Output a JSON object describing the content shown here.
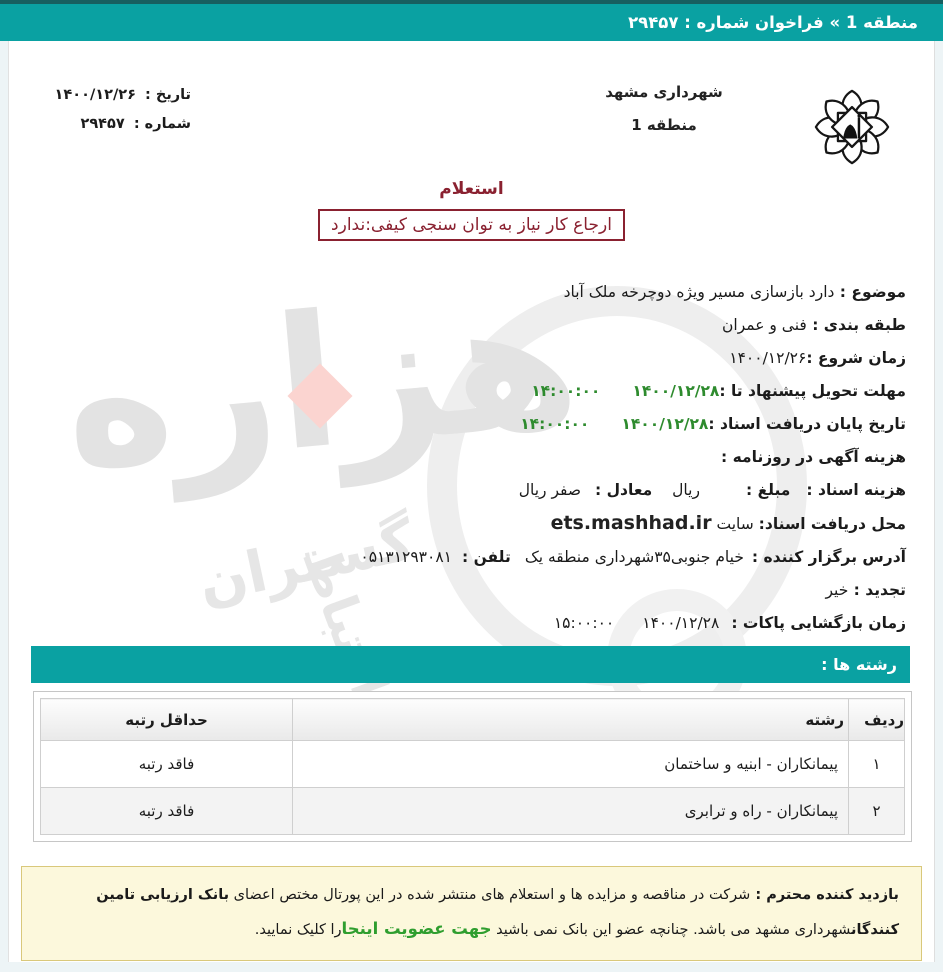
{
  "header": {
    "title": "منطقه 1 » فراخوان شماره : ۲۹۴۵۷"
  },
  "letterhead": {
    "org_line1": "شهرداری مشهد",
    "org_line2": "منطقه 1",
    "date_label": "تاریخ :",
    "date_value": "۱۴۰۰/۱۲/۲۶",
    "no_label": "شماره :",
    "no_value": "۲۹۴۵۷",
    "logo_name": "mashhad-municipality-logo"
  },
  "inquiry": {
    "type_title": "استعلام",
    "qualification_box": "ارجاع کار نیاز به توان سنجی کیفی:ندارد"
  },
  "fields": [
    {
      "name": "subject",
      "segments": [
        {
          "t": "موضوع : ",
          "s": "label"
        },
        {
          "t": "دارد بازسازی مسیر ویژه دوچرخه ملک آباد",
          "s": "value"
        }
      ]
    },
    {
      "name": "category",
      "segments": [
        {
          "t": "طبقه بندی : ",
          "s": "label"
        },
        {
          "t": "فنی و عمران",
          "s": "value"
        }
      ]
    },
    {
      "name": "start-date",
      "segments": [
        {
          "t": "زمان شروع :",
          "s": "label"
        },
        {
          "t": "۱۴۰۰/۱۲/۲۶",
          "s": "value"
        }
      ]
    },
    {
      "name": "proposal-deadline",
      "segments": [
        {
          "t": "مهلت تحویل پیشنهاد تا :",
          "s": "label"
        },
        {
          "t": "۱۴۰۰/۱۲/۲۸",
          "s": "green"
        },
        {
          "s": "gap",
          "w": 32
        },
        {
          "t": "۱۴:۰۰:۰۰",
          "s": "green"
        }
      ]
    },
    {
      "name": "document-receive-end",
      "segments": [
        {
          "t": "تاریخ پایان دریافت اسناد :",
          "s": "label"
        },
        {
          "t": "۱۴۰۰/۱۲/۲۸",
          "s": "green"
        },
        {
          "s": "gap",
          "w": 32
        },
        {
          "t": "۱۴:۰۰:۰۰",
          "s": "green"
        }
      ]
    },
    {
      "name": "newspaper-ad-cost",
      "segments": [
        {
          "t": "هزینه آگهی در روزنامه :",
          "s": "label"
        }
      ]
    },
    {
      "name": "document-cost",
      "segments": [
        {
          "t": "هزینه اسناد :",
          "s": "label"
        },
        {
          "s": "gap",
          "w": 16
        },
        {
          "t": "مبلغ :",
          "s": "label"
        },
        {
          "s": "gap",
          "w": 46
        },
        {
          "t": "ریال",
          "s": "value"
        },
        {
          "s": "gap",
          "w": 20
        },
        {
          "t": "معادل :",
          "s": "label"
        },
        {
          "s": "gap",
          "w": 14
        },
        {
          "t": "صفر ریال",
          "s": "value"
        }
      ]
    },
    {
      "name": "document-location",
      "segments": [
        {
          "t": "محل دریافت اسناد:",
          "s": "label"
        },
        {
          "t": " سایت ",
          "s": "value"
        },
        {
          "t": "ets.mashhad.ir",
          "s": "latin"
        }
      ]
    },
    {
      "name": "organizer-address",
      "segments": [
        {
          "t": "آدرس برگزار کننده :",
          "s": "label"
        },
        {
          "s": "gap",
          "w": 8
        },
        {
          "t": "خیام جنوبی۳۵شهرداری منطقه یک",
          "s": "value"
        },
        {
          "s": "gap",
          "w": 14
        },
        {
          "t": "تلفن :",
          "s": "label"
        },
        {
          "s": "gap",
          "w": 10
        },
        {
          "t": "۰۵۱۳۱۲۹۳۰۸۱",
          "s": "value"
        }
      ]
    },
    {
      "name": "renewal",
      "segments": [
        {
          "t": "تجدید : ",
          "s": "label"
        },
        {
          "t": "خیر",
          "s": "value"
        }
      ]
    },
    {
      "name": "envelope-opening",
      "segments": [
        {
          "t": "زمان بازگشایی پاکات :",
          "s": "label"
        },
        {
          "s": "gap",
          "w": 12
        },
        {
          "t": "۱۴۰۰/۱۲/۲۸",
          "s": "value"
        },
        {
          "s": "gap",
          "w": 28
        },
        {
          "t": "۱۵:۰۰:۰۰",
          "s": "value"
        }
      ]
    }
  ],
  "disciplines": {
    "section_title": "رشته ها :",
    "table": {
      "headers": [
        "ردیف",
        "رشته",
        "حداقل رتبه"
      ],
      "rows": [
        [
          "۱",
          "پیمانکاران - ابنیه و ساختمان",
          "فاقد رتبه"
        ],
        [
          "۲",
          "پیمانکاران - راه و ترابری",
          "فاقد رتبه"
        ]
      ]
    }
  },
  "footer_notice": {
    "segments": [
      {
        "t": "بازدید کننده محترم : ",
        "s": "bold"
      },
      {
        "t": "شرکت در مناقصه و مزایده ها و استعلام های منتشر شده در این پورتال مختص اعضای ",
        "s": "normal"
      },
      {
        "t": "بانک ارزیابی تامین کنندگان",
        "s": "bold"
      },
      {
        "t": "شهرداری مشهد می باشد. چنانچه عضو این بانک نمی باشید ",
        "s": "normal"
      },
      {
        "t": "جهت عضویت اینجا",
        "s": "link"
      },
      {
        "t": "را کلیک نمایید.",
        "s": "normal"
      }
    ]
  },
  "watermark": {
    "word1": "هزاره",
    "word2": "گستران",
    "word3": "ارتباط"
  },
  "colors": {
    "accent_teal": "#0aa1a2",
    "dark_teal_line": "#175f60",
    "maroon": "#8a2130",
    "green_value": "#2e8b2e",
    "link_green": "#2f9e2f",
    "notice_bg": "#fcf8dc",
    "notice_border": "#d9c87b",
    "watermark_gray": "#e3e3e3",
    "watermark_pink": "#fbd4d0"
  }
}
